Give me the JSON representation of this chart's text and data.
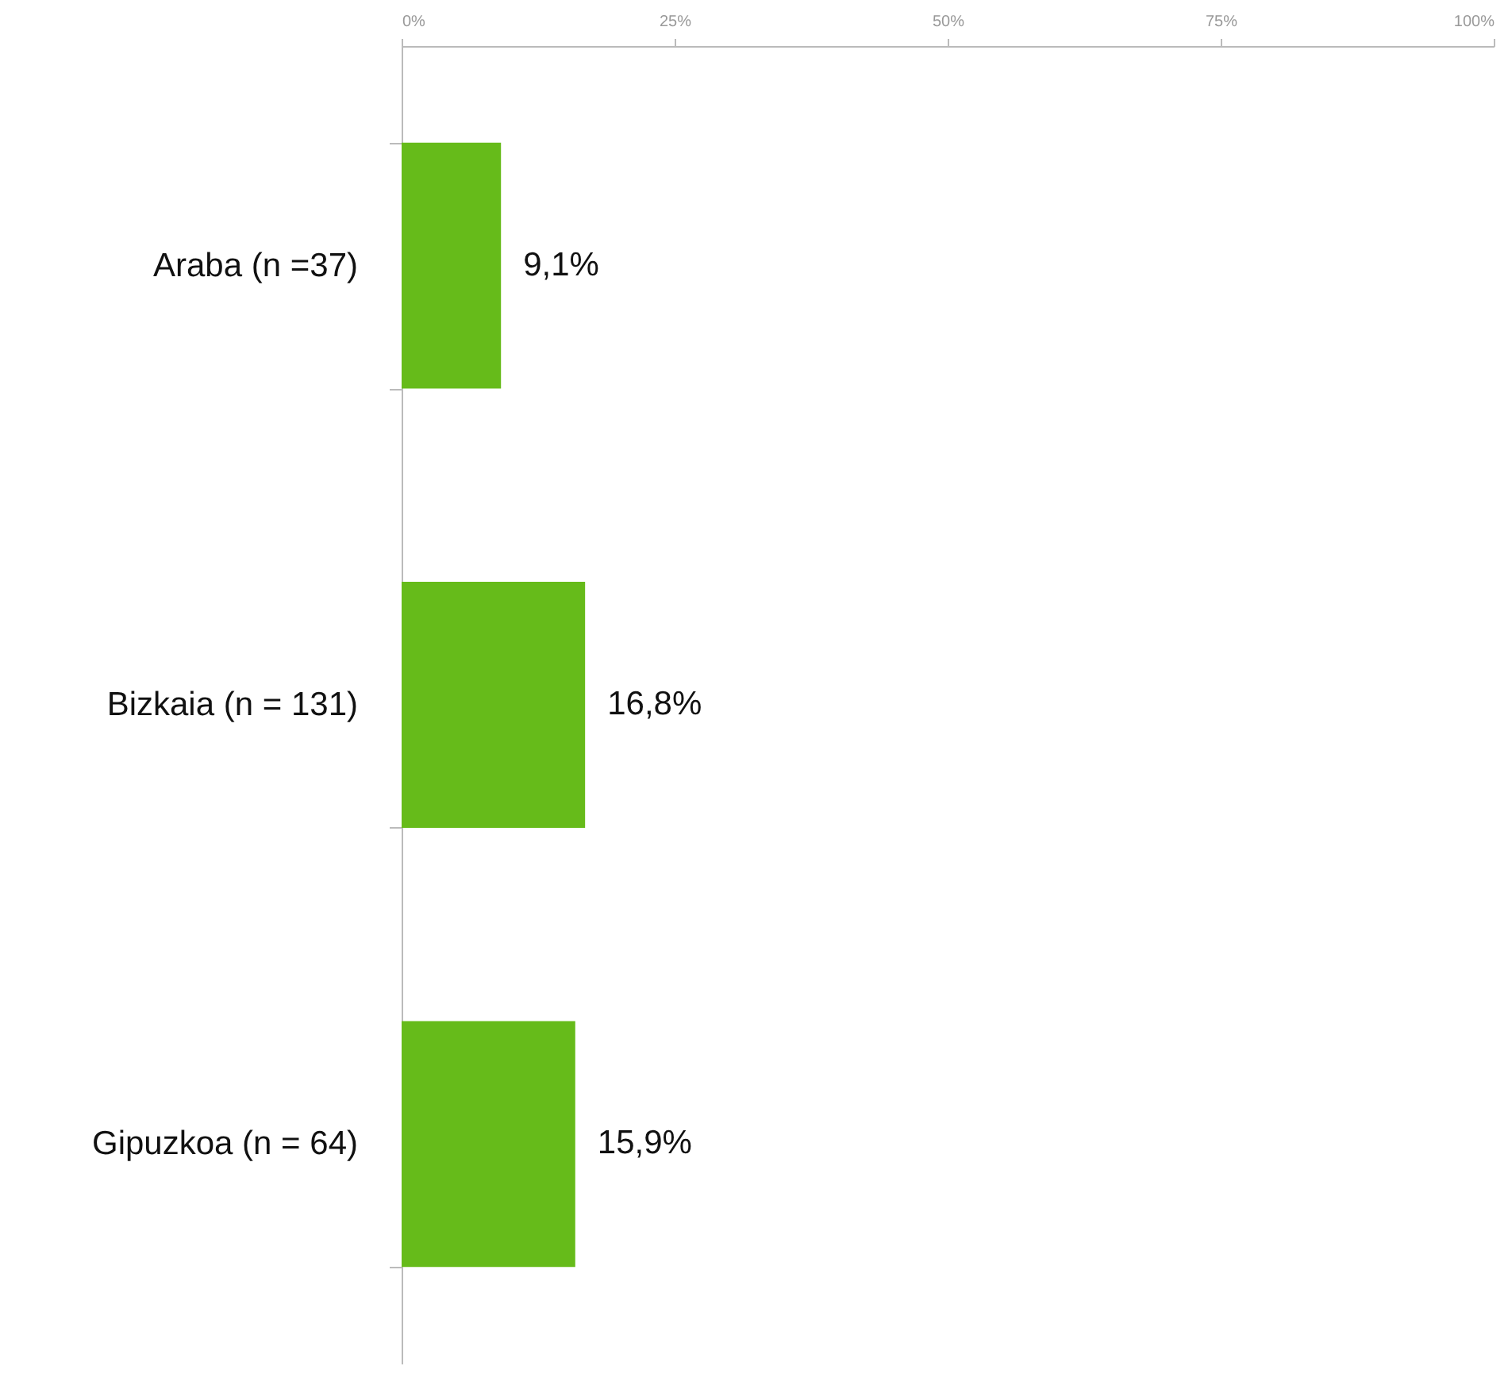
{
  "chart_data": {
    "type": "bar",
    "orientation": "horizontal",
    "categories": [
      "Araba (n =37)",
      "Bizkaia (n = 131)",
      "Gipuzkoa (n = 64)"
    ],
    "values": [
      9.1,
      16.8,
      15.9
    ],
    "value_labels": [
      "9,1%",
      "16,8%",
      "15,9%"
    ],
    "color": "#66bb1a",
    "xlim": [
      0,
      100
    ],
    "xticks": [
      {
        "value": 0,
        "label": "0%"
      },
      {
        "value": 25,
        "label": "25%"
      },
      {
        "value": 50,
        "label": "50%"
      },
      {
        "value": 75,
        "label": "75%"
      },
      {
        "value": 100,
        "label": "100%"
      }
    ],
    "grid": false
  }
}
